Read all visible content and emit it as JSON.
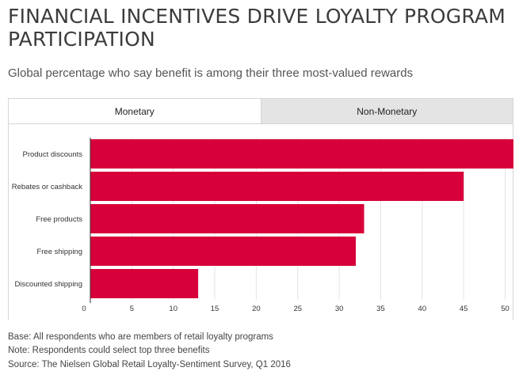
{
  "header": {
    "title": "FINANCIAL INCENTIVES DRIVE LOYALTY PROGRAM PARTICIPATION",
    "subtitle": "Global percentage who say benefit is among their three most-valued rewards"
  },
  "tabs": [
    {
      "label": "Monetary",
      "active": true
    },
    {
      "label": "Non-Monetary",
      "active": false
    }
  ],
  "chart_data": {
    "type": "bar",
    "orientation": "horizontal",
    "categories": [
      "Product discounts",
      "Rebates or cashback",
      "Free products",
      "Free shipping",
      "Discounted shipping"
    ],
    "values": [
      51,
      45,
      33,
      32,
      13
    ],
    "xlim": [
      0,
      51
    ],
    "xticks": [
      0,
      5,
      10,
      15,
      20,
      25,
      30,
      35,
      40,
      45,
      50
    ],
    "bar_color": "#d7003a",
    "grid": true
  },
  "footer": {
    "base": "Base: All respondents who are members of retail loyalty programs",
    "note": "Note: Respondents could select top three benefits",
    "source": "Source: The Nielsen Global Retail Loyalty-Sentiment Survey, Q1 2016"
  }
}
